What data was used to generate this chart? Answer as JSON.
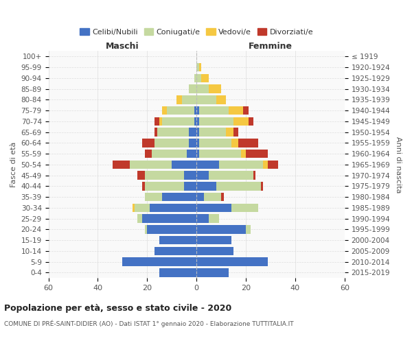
{
  "age_groups": [
    "0-4",
    "5-9",
    "10-14",
    "15-19",
    "20-24",
    "25-29",
    "30-34",
    "35-39",
    "40-44",
    "45-49",
    "50-54",
    "55-59",
    "60-64",
    "65-69",
    "70-74",
    "75-79",
    "80-84",
    "85-89",
    "90-94",
    "95-99",
    "100+"
  ],
  "birth_years": [
    "2015-2019",
    "2010-2014",
    "2005-2009",
    "2000-2004",
    "1995-1999",
    "1990-1994",
    "1985-1989",
    "1980-1984",
    "1975-1979",
    "1970-1974",
    "1965-1969",
    "1960-1964",
    "1955-1959",
    "1950-1954",
    "1945-1949",
    "1940-1944",
    "1935-1939",
    "1930-1934",
    "1925-1929",
    "1920-1924",
    "≤ 1919"
  ],
  "maschi": {
    "celibi": [
      15,
      30,
      17,
      15,
      20,
      22,
      19,
      14,
      5,
      5,
      10,
      4,
      3,
      3,
      1,
      1,
      0,
      0,
      0,
      0,
      0
    ],
    "coniugati": [
      0,
      0,
      0,
      0,
      1,
      2,
      6,
      7,
      16,
      16,
      17,
      14,
      14,
      13,
      13,
      11,
      6,
      3,
      1,
      0,
      0
    ],
    "vedovi": [
      0,
      0,
      0,
      0,
      0,
      0,
      1,
      0,
      0,
      0,
      0,
      0,
      0,
      0,
      1,
      2,
      2,
      0,
      0,
      0,
      0
    ],
    "divorziati": [
      0,
      0,
      0,
      0,
      0,
      0,
      0,
      0,
      1,
      3,
      7,
      3,
      5,
      1,
      2,
      0,
      0,
      0,
      0,
      0,
      0
    ]
  },
  "femmine": {
    "nubili": [
      13,
      29,
      15,
      14,
      20,
      5,
      14,
      3,
      8,
      5,
      9,
      1,
      1,
      1,
      1,
      1,
      0,
      0,
      0,
      0,
      0
    ],
    "coniugate": [
      0,
      0,
      0,
      0,
      2,
      4,
      11,
      7,
      18,
      18,
      18,
      17,
      13,
      11,
      14,
      12,
      8,
      5,
      2,
      1,
      0
    ],
    "vedove": [
      0,
      0,
      0,
      0,
      0,
      0,
      0,
      0,
      0,
      0,
      2,
      2,
      3,
      3,
      6,
      6,
      4,
      5,
      3,
      1,
      0
    ],
    "divorziate": [
      0,
      0,
      0,
      0,
      0,
      0,
      0,
      1,
      1,
      1,
      4,
      9,
      8,
      2,
      2,
      2,
      0,
      0,
      0,
      0,
      0
    ]
  },
  "colors": {
    "celibi": "#4472c4",
    "coniugati": "#c5d9a0",
    "vedovi": "#f5c842",
    "divorziati": "#c0392b"
  },
  "xlim": 60,
  "title": "Popolazione per età, sesso e stato civile - 2020",
  "subtitle": "COMUNE DI PRÉ-SAINT-DIDIER (AO) - Dati ISTAT 1° gennaio 2020 - Elaborazione TUTTITALIA.IT",
  "ylabel_left": "Fasce di età",
  "ylabel_right": "Anni di nascita",
  "xlabel_left": "Maschi",
  "xlabel_right": "Femmine"
}
